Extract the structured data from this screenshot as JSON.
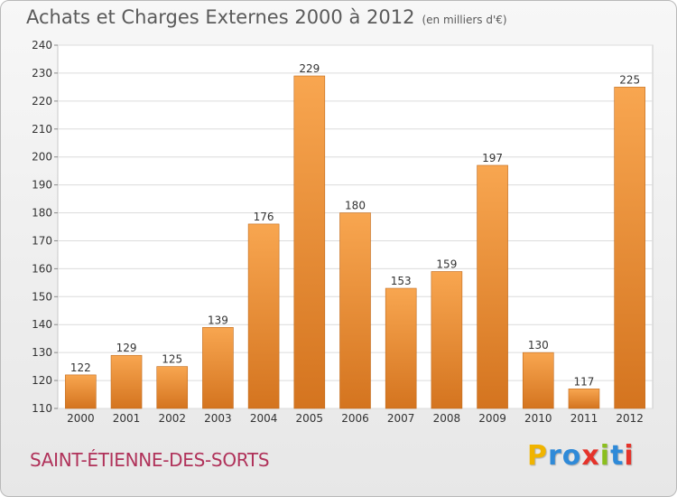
{
  "title": "Achats et Charges Externes 2000 à 2012",
  "subtitle": "(en milliers d'€)",
  "commune": "SAINT-ÉTIENNE-DES-SORTS",
  "logo": {
    "letters": [
      "P",
      "r",
      "o",
      "x",
      "i",
      "t",
      "i"
    ],
    "colors": [
      "#f0b400",
      "#2f8ad8",
      "#2f8ad8",
      "#e5332a",
      "#8bbf1e",
      "#2f8ad8",
      "#e5332a"
    ]
  },
  "colors": {
    "bar_top": "#f8a650",
    "bar_bottom": "#d4741f",
    "commune": "#b0325a"
  },
  "chart_data": {
    "type": "bar",
    "categories": [
      "2000",
      "2001",
      "2002",
      "2003",
      "2004",
      "2005",
      "2006",
      "2007",
      "2008",
      "2009",
      "2010",
      "2011",
      "2012"
    ],
    "values": [
      122,
      129,
      125,
      139,
      176,
      229,
      180,
      153,
      159,
      197,
      130,
      117,
      225
    ],
    "ylim": [
      110,
      240
    ],
    "yticks": [
      110,
      120,
      130,
      140,
      150,
      160,
      170,
      180,
      190,
      200,
      210,
      220,
      230,
      240
    ],
    "grid": true
  }
}
